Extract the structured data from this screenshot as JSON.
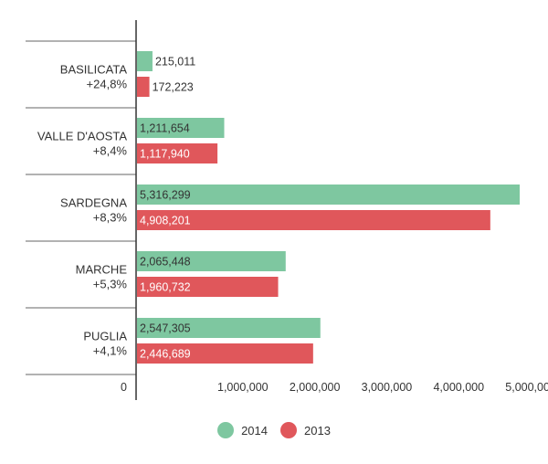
{
  "chart_data": {
    "type": "bar",
    "orientation": "horizontal",
    "categories": [
      {
        "name": "BASILICATA",
        "change": "+24,8%"
      },
      {
        "name": "VALLE D'AOSTA",
        "change": "+8,4%"
      },
      {
        "name": "SARDEGNA",
        "change": "+8,3%"
      },
      {
        "name": "MARCHE",
        "change": "+5,3%"
      },
      {
        "name": "PUGLIA",
        "change": "+4,1%"
      }
    ],
    "series": [
      {
        "name": "2014",
        "color": "#7ec7a0",
        "values": [
          215011,
          1211654,
          5316299,
          2065448,
          2547305
        ],
        "labels": [
          "215,011",
          "1,211,654",
          "5,316,299",
          "2,065,448",
          "2,547,305"
        ]
      },
      {
        "name": "2013",
        "color": "#e0575b",
        "values": [
          172223,
          1117940,
          4908201,
          1960732,
          2446689
        ],
        "labels": [
          "172,223",
          "1,117,940",
          "4,908,201",
          "1,960,732",
          "2,446,689"
        ]
      }
    ],
    "xlim": [
      0,
      5316299
    ],
    "xticks": [
      0,
      1000000,
      2000000,
      3000000,
      4000000,
      5000000
    ],
    "xtick_labels": [
      "0",
      "1,000,000",
      "2,000,000",
      "3,000,000",
      "4,000,000",
      "5,000,000"
    ],
    "legend_position": "bottom-center",
    "grid": false
  }
}
